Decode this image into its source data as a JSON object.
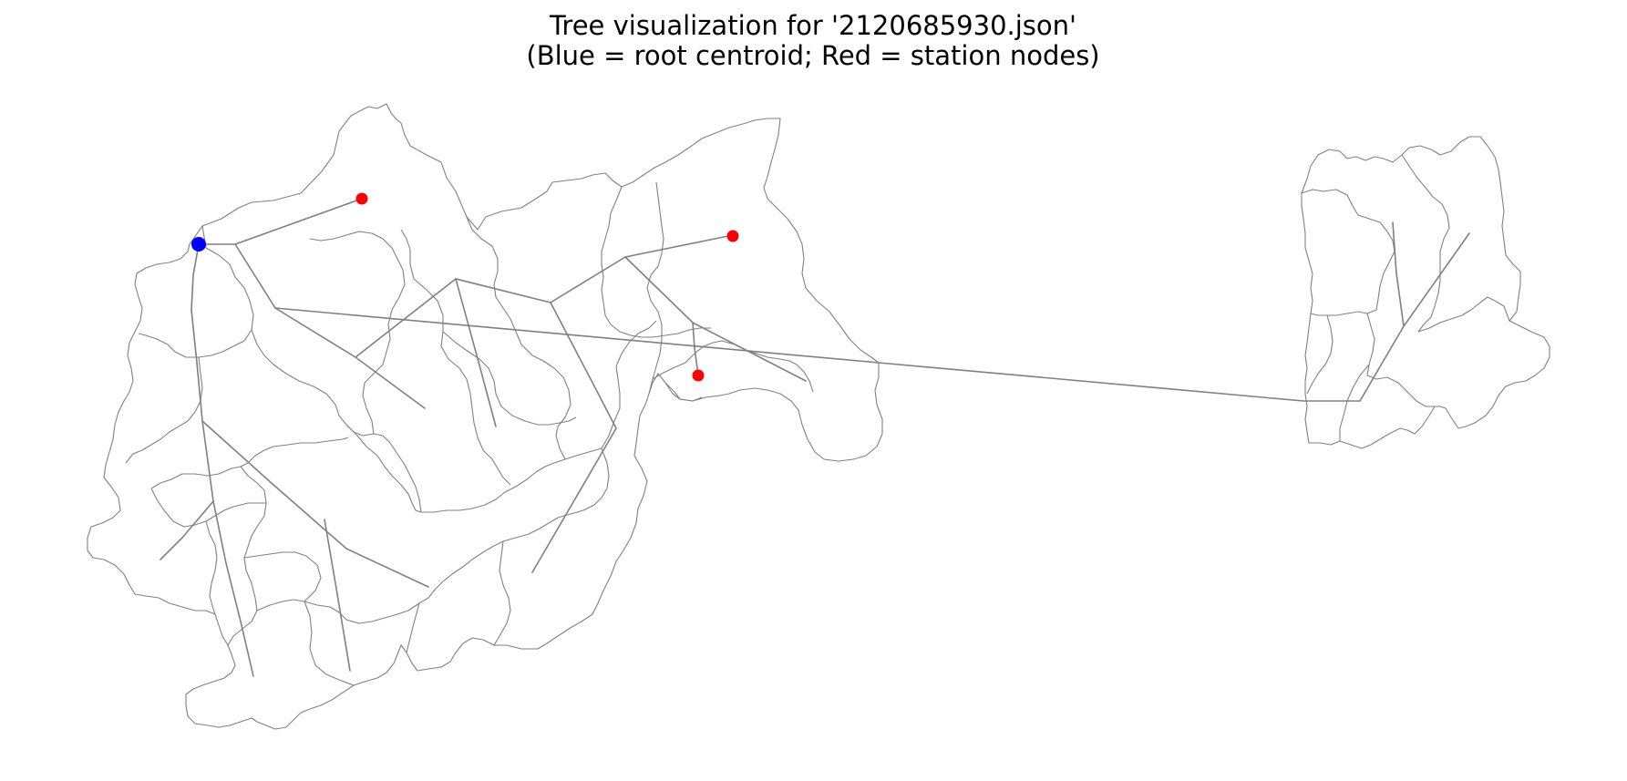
{
  "figure": {
    "title_line1": "Tree visualization for '2120685930.json'",
    "title_line2": "(Blue = root centroid; Red = station nodes)"
  },
  "colors": {
    "root_node": "#0000ff",
    "station_node": "#ff0000",
    "edges": "#808080",
    "basin_outline": "#808080",
    "background": "#ffffff"
  },
  "nodes": {
    "root": {
      "role": "root centroid",
      "count": 1
    },
    "stations": {
      "role": "station nodes",
      "count": 3
    }
  }
}
